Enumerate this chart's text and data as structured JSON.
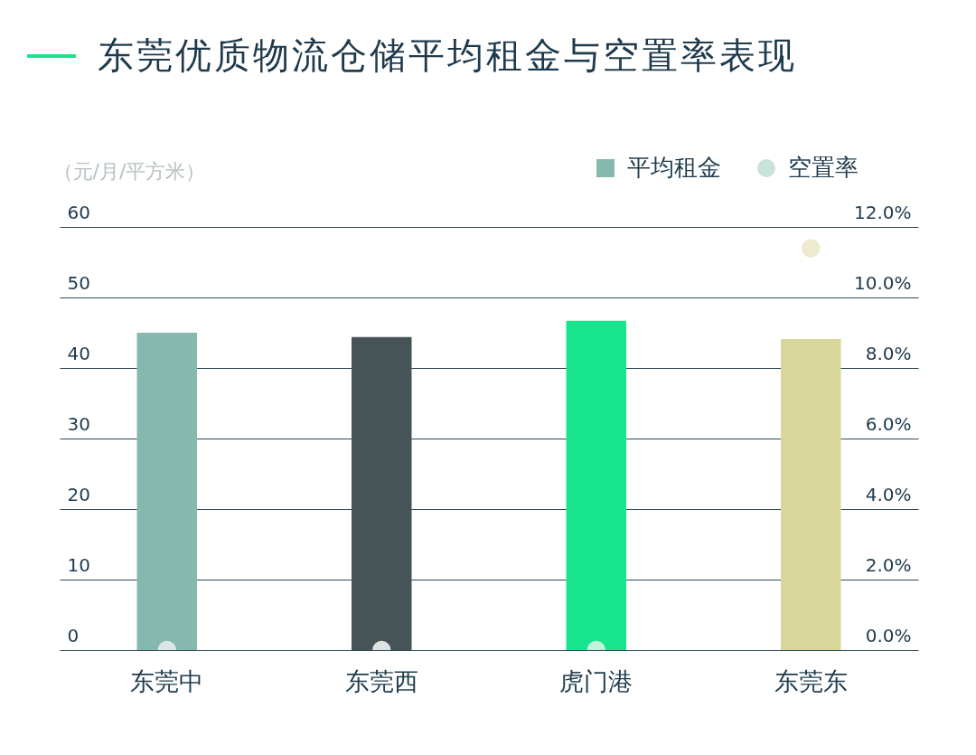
{
  "chart_data": {
    "type": "bar",
    "title": "东莞优质物流仓储平均租金与空置率表现",
    "ylabel": "（元/月/平方米）",
    "categories": [
      "东莞中",
      "东莞西",
      "虎门港",
      "东莞东"
    ],
    "series": [
      {
        "name": "平均租金",
        "color": "#86b9ad",
        "colors": [
          "#86b9ad",
          "#465457",
          "#19e58f",
          "#d9d69b"
        ],
        "values": [
          45.0,
          44.4,
          46.7,
          44.1
        ]
      },
      {
        "name": "空置率",
        "type": "scatter",
        "axis": "y2",
        "color": "#c9e2dc",
        "colors": [
          "#dce6e3",
          "#dde3e3",
          "#c4f2dd",
          "#eeeacf"
        ],
        "values": [
          0,
          0,
          0,
          11.4
        ]
      }
    ],
    "ylim": [
      0,
      60
    ],
    "yticks": [
      0,
      10,
      20,
      30,
      40,
      50,
      60
    ],
    "y2lim": [
      0,
      12
    ],
    "y2ticks": [
      {
        "value": 0,
        "label": "0.0%"
      },
      {
        "value": 2,
        "label": "2.0%"
      },
      {
        "value": 4,
        "label": "4.0%"
      },
      {
        "value": 6,
        "label": "6.0%"
      },
      {
        "value": 8,
        "label": "8.0%"
      },
      {
        "value": 10,
        "label": "10.0%"
      },
      {
        "value": 12,
        "label": "12.0%"
      }
    ],
    "grid": "y",
    "legend": "top right",
    "marker": "circle"
  }
}
